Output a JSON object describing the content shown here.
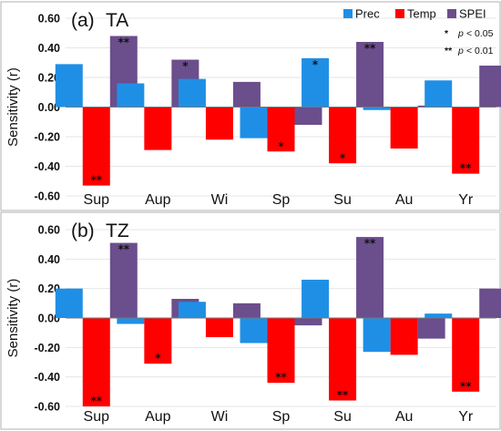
{
  "legend": [
    {
      "label": "Prec",
      "color": "#1f8fe6"
    },
    {
      "label": "Temp",
      "color": "#ff0000"
    },
    {
      "label": "SPEI",
      "color": "#6b4e8c"
    }
  ],
  "significance_key": [
    {
      "marker": "*",
      "text_prefix": "p",
      "text_suffix": "< 0.05"
    },
    {
      "marker": "**",
      "text_prefix": "p",
      "text_suffix": "< 0.01"
    }
  ],
  "chart_data": [
    {
      "type": "bar",
      "title": "TA",
      "panel_letter": "(a)",
      "ylabel": "Sensitivity (r)",
      "ylim": [
        -0.6,
        0.6
      ],
      "yticks": [
        "-0.60",
        "-0.40",
        "-0.20",
        "0.00",
        "0.20",
        "0.40",
        "0.60"
      ],
      "ytick_values": [
        -0.6,
        -0.4,
        -0.2,
        0.0,
        0.2,
        0.4,
        0.6
      ],
      "categories": [
        "Sup",
        "Aup",
        "Wi",
        "Sp",
        "Su",
        "Au",
        "Yr"
      ],
      "series": [
        {
          "name": "Prec",
          "values": [
            0.29,
            0.16,
            0.19,
            -0.21,
            0.33,
            -0.02,
            0.18
          ],
          "significance": [
            "",
            "",
            "",
            "",
            "*",
            "",
            ""
          ]
        },
        {
          "name": "Temp",
          "values": [
            -0.53,
            -0.29,
            -0.22,
            -0.3,
            -0.38,
            -0.28,
            -0.45
          ],
          "significance": [
            "**",
            "",
            "",
            "*",
            "*",
            "",
            "**"
          ]
        },
        {
          "name": "SPEI",
          "values": [
            0.48,
            0.32,
            0.17,
            -0.12,
            0.44,
            0.01,
            0.28
          ],
          "significance": [
            "**",
            "*",
            "",
            "",
            "**",
            "",
            ""
          ]
        }
      ]
    },
    {
      "type": "bar",
      "title": "TZ",
      "panel_letter": "(b)",
      "ylabel": "Sensitivity (r)",
      "ylim": [
        -0.6,
        0.6
      ],
      "yticks": [
        "-0.60",
        "-0.40",
        "-0.20",
        "0.00",
        "0.20",
        "0.40",
        "0.60"
      ],
      "ytick_values": [
        -0.6,
        -0.4,
        -0.2,
        0.0,
        0.2,
        0.4,
        0.6
      ],
      "categories": [
        "Sup",
        "Aup",
        "Wi",
        "Sp",
        "Su",
        "Au",
        "Yr"
      ],
      "series": [
        {
          "name": "Prec",
          "values": [
            0.2,
            -0.04,
            0.11,
            -0.17,
            0.26,
            -0.23,
            0.03
          ],
          "significance": [
            "",
            "",
            "",
            "",
            "",
            "",
            ""
          ]
        },
        {
          "name": "Temp",
          "values": [
            -0.6,
            -0.31,
            -0.13,
            -0.44,
            -0.56,
            -0.25,
            -0.5
          ],
          "significance": [
            "**",
            "*",
            "",
            "**",
            "**",
            "",
            "**"
          ]
        },
        {
          "name": "SPEI",
          "values": [
            0.51,
            0.13,
            0.1,
            -0.05,
            0.55,
            -0.14,
            0.2
          ],
          "significance": [
            "**",
            "",
            "",
            "",
            "**",
            "",
            ""
          ]
        }
      ]
    }
  ]
}
